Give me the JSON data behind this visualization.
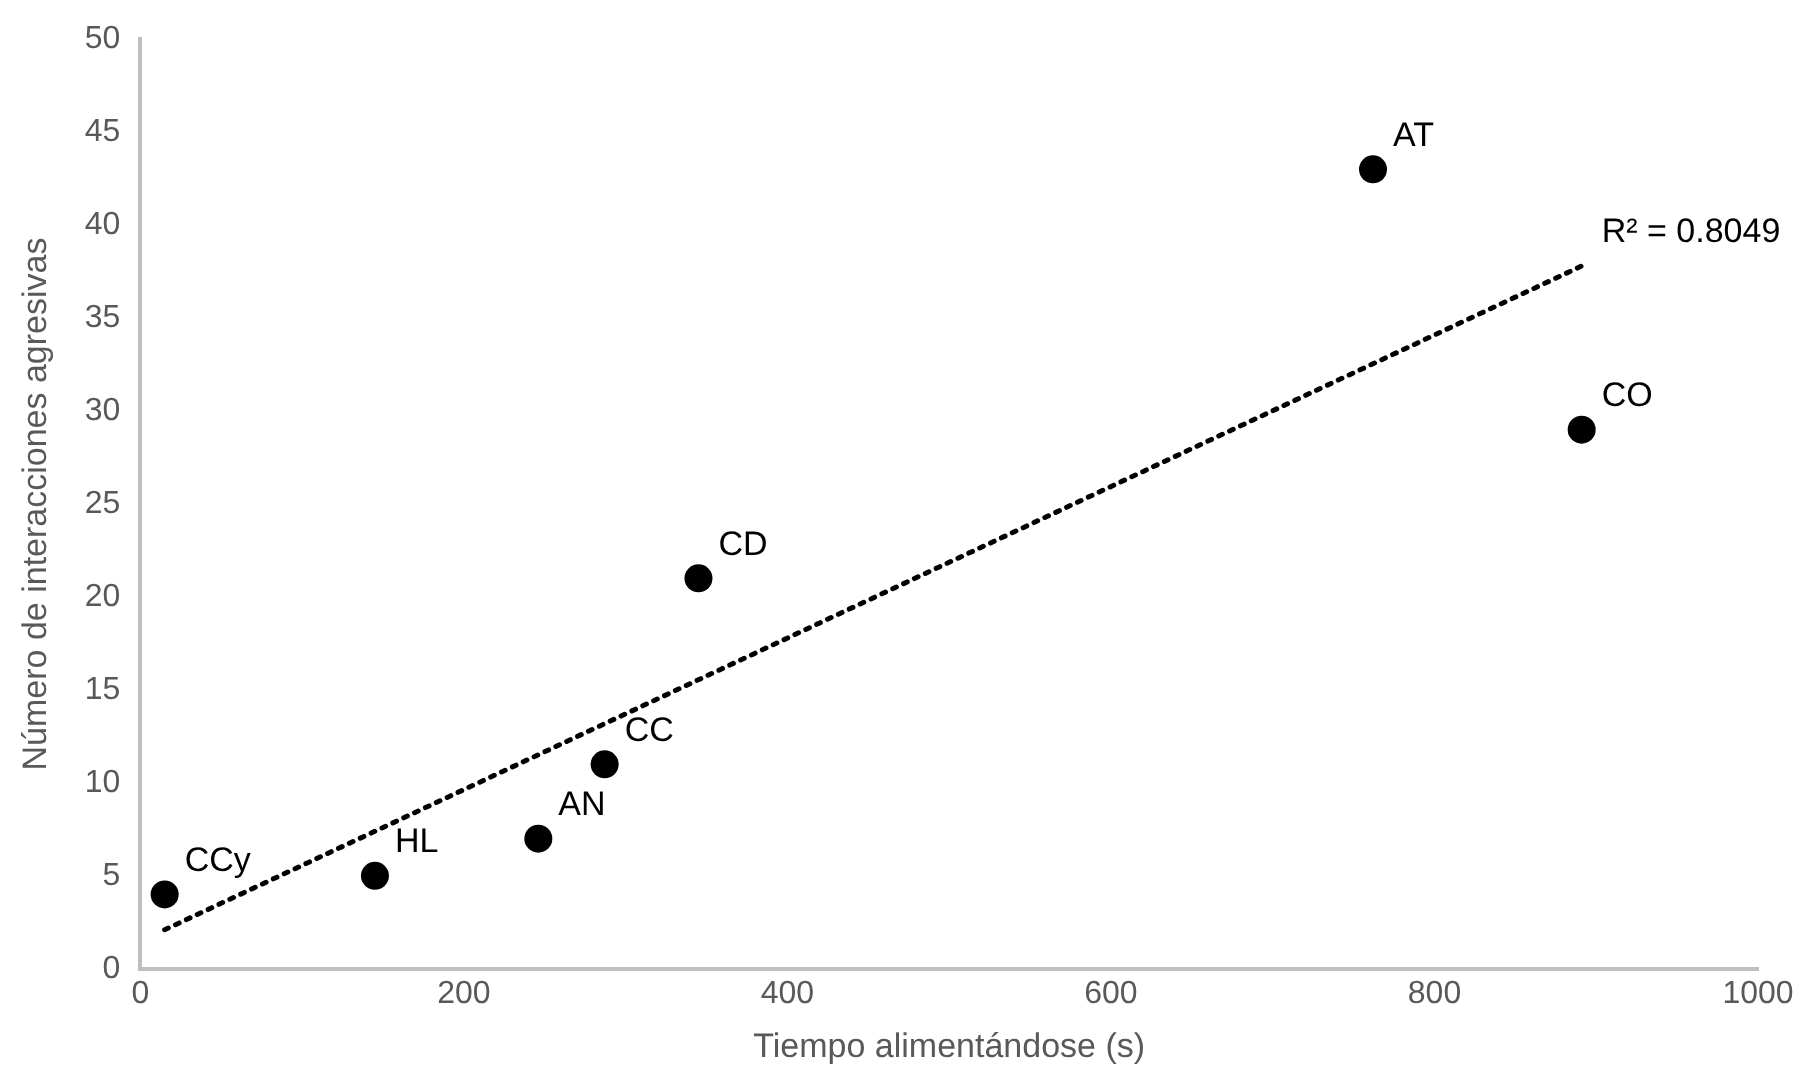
{
  "chart_data": {
    "type": "scatter",
    "xlabel": "Tiempo alimentándose (s)",
    "ylabel": "Número de interacciones agresivas",
    "xlim": [
      0,
      1000
    ],
    "xticks": [
      0,
      200,
      400,
      600,
      800,
      1000
    ],
    "ylim": [
      0,
      50
    ],
    "yticks": [
      0,
      5,
      10,
      15,
      20,
      25,
      30,
      35,
      40,
      45,
      50
    ],
    "grid": false,
    "legend": false,
    "marker": "circle",
    "series": [
      {
        "color": "#000000",
        "x": [
          15,
          145,
          246,
          287,
          345,
          762,
          891
        ],
        "values": [
          4,
          5,
          7,
          11,
          21,
          43,
          29
        ]
      },
      {
        "type": "line",
        "color": "#000000",
        "line_style": "dotted",
        "marker": "none",
        "x": [
          15,
          891
        ],
        "values": [
          2.1,
          37.8
        ]
      }
    ],
    "annotations": [
      {
        "text": "CCy",
        "x": 15,
        "y": 4
      },
      {
        "text": "HL",
        "x": 145,
        "y": 5
      },
      {
        "text": "AN",
        "x": 246,
        "y": 7
      },
      {
        "text": "CC",
        "x": 287,
        "y": 11
      },
      {
        "text": "CD",
        "x": 345,
        "y": 21
      },
      {
        "text": "AT",
        "x": 762,
        "y": 43
      },
      {
        "text": "CO",
        "x": 891,
        "y": 29
      },
      {
        "text": "R² = 0.8049",
        "x": 891,
        "y": 37.8
      }
    ]
  }
}
